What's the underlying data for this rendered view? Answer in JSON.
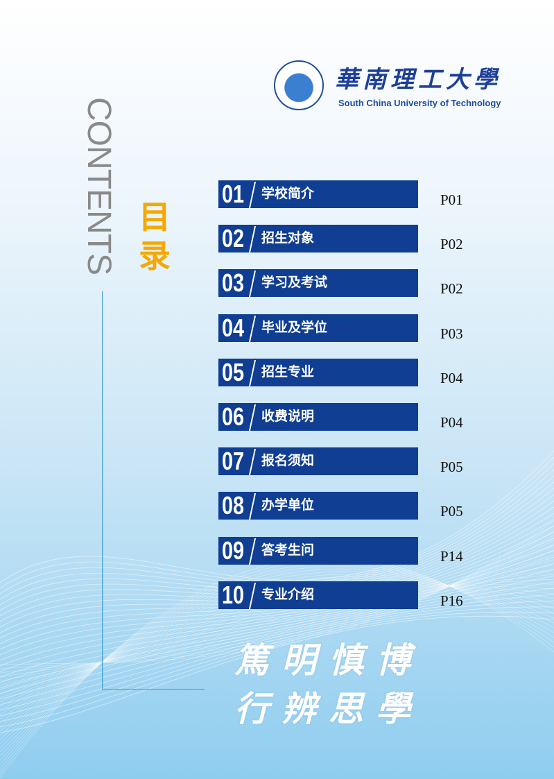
{
  "header": {
    "university_cn": "華南理工大學",
    "university_en": "South China University of Technology",
    "seal_text": "華南理工大學 SOUTH CHINA UNIVERSITY OF TECHNOLOGY"
  },
  "side": {
    "contents_label": "CONTENTS",
    "mulu_label": "目录"
  },
  "toc": [
    {
      "num": "01",
      "title": "学校简介",
      "page": "P01"
    },
    {
      "num": "02",
      "title": "招生对象",
      "page": "P02"
    },
    {
      "num": "03",
      "title": "学习及考试",
      "page": "P02"
    },
    {
      "num": "04",
      "title": "毕业及学位",
      "page": "P03"
    },
    {
      "num": "05",
      "title": "招生专业",
      "page": "P04"
    },
    {
      "num": "06",
      "title": "收费说明",
      "page": "P04"
    },
    {
      "num": "07",
      "title": "报名须知",
      "page": "P05"
    },
    {
      "num": "08",
      "title": "办学单位",
      "page": "P05"
    },
    {
      "num": "09",
      "title": "答考生问",
      "page": "P14"
    },
    {
      "num": "10",
      "title": "专业介绍",
      "page": "P16"
    }
  ],
  "motto": {
    "line1": "篤明慎博",
    "line2": "行辨思學"
  },
  "colors": {
    "bar": "#0f3e93",
    "accent": "#f5a800"
  }
}
